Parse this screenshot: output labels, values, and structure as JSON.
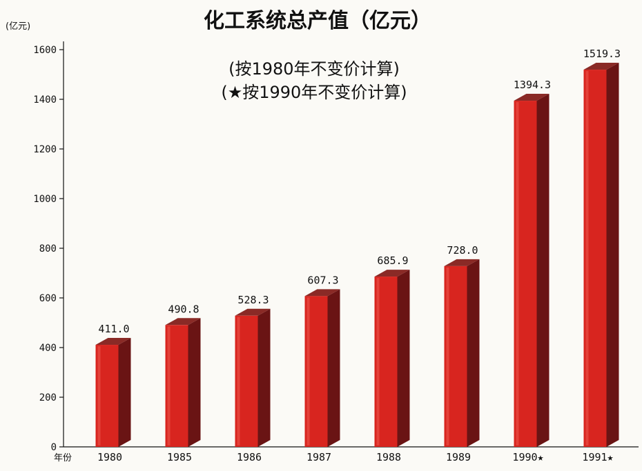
{
  "chart_data": {
    "type": "bar",
    "title": "化工系统总产值（亿元）",
    "subtitle_lines": [
      "(按1980年不变价计算)",
      "(★按1990年不变价计算)"
    ],
    "ylabel": "(亿元)",
    "xlabel": "年份",
    "ylim": [
      0,
      1600
    ],
    "yticks": [
      "0",
      "200",
      "400",
      "600",
      "800",
      "1000",
      "1200",
      "1400",
      "1600"
    ],
    "categories": [
      "1980",
      "1985",
      "1986",
      "1987",
      "1988",
      "1989",
      "1990★",
      "1991★"
    ],
    "values": [
      411.0,
      490.8,
      528.3,
      607.3,
      685.9,
      728.0,
      1394.3,
      1519.3
    ],
    "value_labels": [
      "411.0",
      "490.8",
      "528.3",
      "607.3",
      "685.9",
      "728.0",
      "1394.3",
      "1519.3"
    ],
    "bar_colors": {
      "front": "#d8251f",
      "side": "#6a1414",
      "top": "#8a2a26"
    }
  }
}
